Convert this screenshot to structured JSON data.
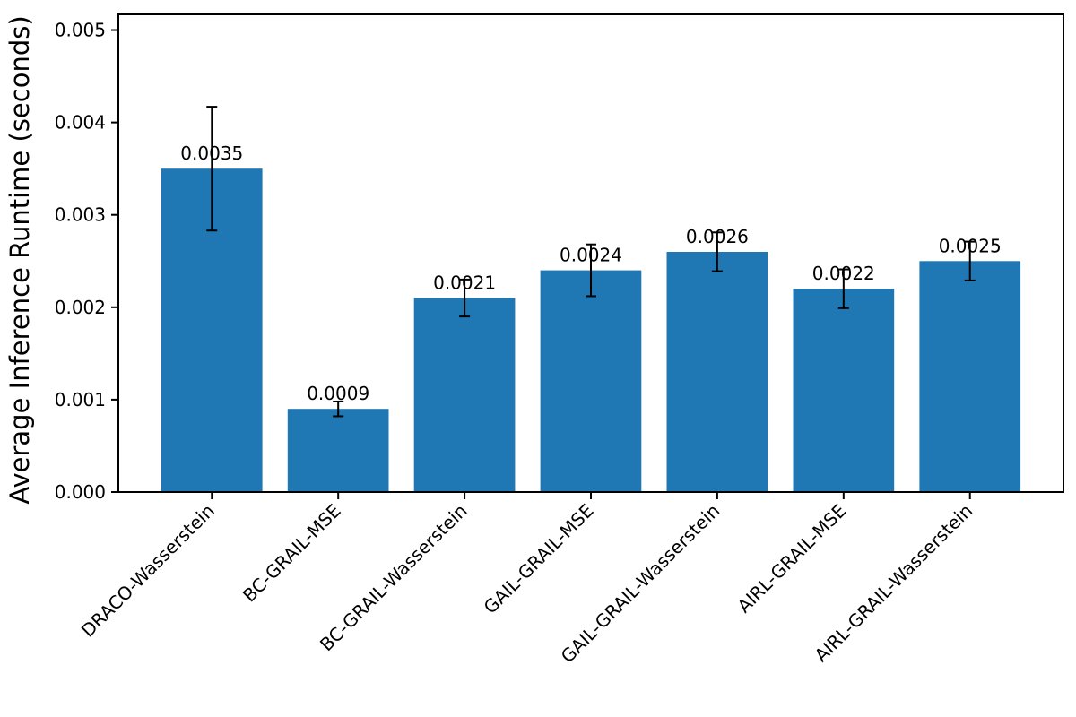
{
  "chart_data": {
    "type": "bar",
    "title": "",
    "xlabel": "",
    "ylabel": "Average Inference Runtime (seconds)",
    "categories": [
      "DRACO-Wasserstein",
      "BC-GRAIL-MSE",
      "BC-GRAIL-Wasserstein",
      "GAIL-GRAIL-MSE",
      "GAIL-GRAIL-Wasserstein",
      "AIRL-GRAIL-MSE",
      "AIRL-GRAIL-Wasserstein"
    ],
    "values": [
      0.0035,
      0.0009,
      0.0021,
      0.0024,
      0.0026,
      0.0022,
      0.0025
    ],
    "value_labels": [
      "0.0035",
      "0.0009",
      "0.0021",
      "0.0024",
      "0.0026",
      "0.0022",
      "0.0025"
    ],
    "error_bars": [
      0.00067,
      8e-05,
      0.0002,
      0.00028,
      0.00021,
      0.00021,
      0.00021
    ],
    "ytick_labels": [
      "0.000",
      "0.001",
      "0.002",
      "0.003",
      "0.004",
      "0.005"
    ],
    "ytick_values": [
      0,
      0.001,
      0.002,
      0.003,
      0.004,
      0.005
    ],
    "ylim": [
      0,
      0.00517
    ],
    "xtick_rotation_deg": 45,
    "grid": false,
    "legend": null,
    "bar_color": "#1f77b4",
    "error_bar_color": "#000000",
    "axis_color": "#000000",
    "text_color": "#000000",
    "background_color": "#ffffff"
  }
}
